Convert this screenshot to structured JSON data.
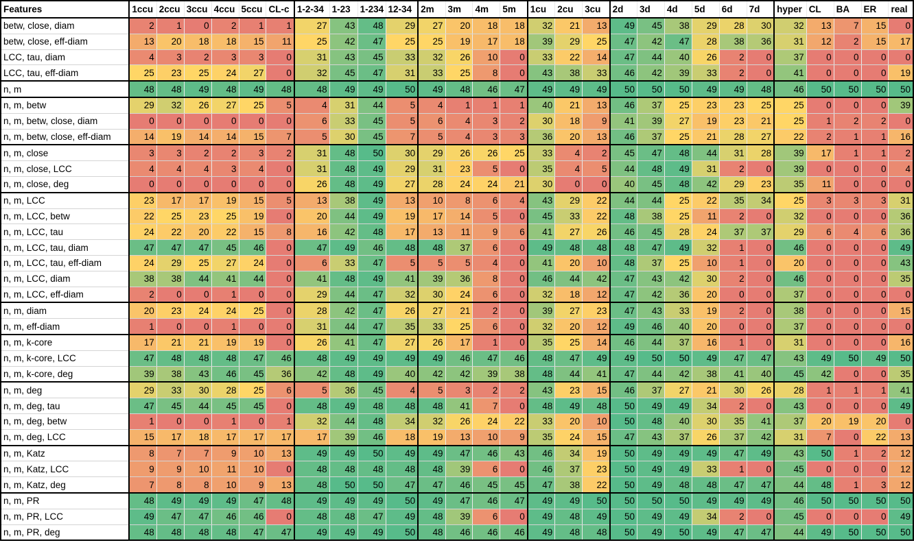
{
  "header": [
    "Features",
    "1ccu",
    "2ccu",
    "3ccu",
    "4ccu",
    "5ccu",
    "CL-c",
    "1-2-34",
    "1-23",
    "1-234",
    "12-34",
    "2m",
    "3m",
    "4m",
    "5m",
    "1cu",
    "2cu",
    "3cu",
    "2d",
    "3d",
    "4d",
    "5d",
    "6d",
    "7d",
    "hyper",
    "CL",
    "BA",
    "ER",
    "real"
  ],
  "rows": [
    {
      "feature": "betw, close, diam",
      "values": [
        2,
        1,
        0,
        2,
        1,
        1,
        27,
        43,
        48,
        29,
        27,
        20,
        18,
        18,
        32,
        21,
        13,
        49,
        45,
        38,
        29,
        28,
        30,
        32,
        13,
        7,
        15,
        0
      ]
    },
    {
      "feature": "betw, close, eff-diam",
      "values": [
        13,
        20,
        18,
        18,
        15,
        11,
        25,
        42,
        47,
        25,
        25,
        19,
        17,
        18,
        39,
        29,
        25,
        47,
        42,
        47,
        28,
        38,
        36,
        31,
        12,
        2,
        15,
        17
      ]
    },
    {
      "feature": "LCC, tau, diam",
      "values": [
        4,
        3,
        2,
        3,
        3,
        0,
        31,
        43,
        45,
        33,
        32,
        26,
        10,
        0,
        33,
        22,
        14,
        47,
        44,
        40,
        26,
        2,
        0,
        37,
        0,
        0,
        0,
        0
      ]
    },
    {
      "feature": "LCC, tau, eff-diam",
      "values": [
        25,
        23,
        25,
        24,
        27,
        0,
        32,
        45,
        47,
        31,
        33,
        25,
        8,
        0,
        43,
        38,
        33,
        46,
        42,
        39,
        33,
        2,
        0,
        41,
        0,
        0,
        0,
        19
      ]
    },
    {
      "feature": "n, m",
      "values": [
        48,
        48,
        49,
        48,
        49,
        48,
        48,
        49,
        49,
        50,
        49,
        48,
        46,
        47,
        49,
        49,
        49,
        50,
        50,
        50,
        49,
        49,
        48,
        46,
        50,
        50,
        50,
        50
      ]
    },
    {
      "feature": "n, m, betw",
      "values": [
        29,
        32,
        26,
        27,
        25,
        5,
        4,
        31,
        44,
        5,
        4,
        1,
        1,
        1,
        40,
        21,
        13,
        46,
        37,
        25,
        23,
        23,
        25,
        25,
        0,
        0,
        0,
        39
      ]
    },
    {
      "feature": "n, m, betw, close, diam",
      "values": [
        0,
        0,
        0,
        0,
        0,
        0,
        6,
        33,
        45,
        5,
        6,
        4,
        3,
        2,
        30,
        18,
        9,
        41,
        39,
        27,
        19,
        23,
        21,
        25,
        1,
        2,
        2,
        0
      ]
    },
    {
      "feature": "n, m, betw, close, eff-diam",
      "values": [
        14,
        19,
        14,
        14,
        15,
        7,
        5,
        30,
        45,
        7,
        5,
        4,
        3,
        3,
        36,
        20,
        13,
        46,
        37,
        25,
        21,
        28,
        27,
        22,
        2,
        1,
        1,
        16
      ]
    },
    {
      "feature": "n, m, close",
      "values": [
        3,
        3,
        2,
        2,
        3,
        2,
        31,
        48,
        50,
        30,
        29,
        26,
        26,
        25,
        33,
        4,
        2,
        45,
        47,
        48,
        44,
        31,
        28,
        39,
        17,
        1,
        1,
        2
      ]
    },
    {
      "feature": "n, m, close, LCC",
      "values": [
        4,
        4,
        4,
        3,
        4,
        0,
        31,
        48,
        49,
        29,
        31,
        23,
        5,
        0,
        35,
        4,
        5,
        44,
        48,
        49,
        31,
        2,
        0,
        39,
        0,
        0,
        0,
        4
      ]
    },
    {
      "feature": "n, m, close, deg",
      "values": [
        0,
        0,
        0,
        0,
        0,
        0,
        26,
        48,
        49,
        27,
        28,
        24,
        24,
        21,
        30,
        0,
        0,
        40,
        45,
        48,
        42,
        29,
        23,
        35,
        11,
        0,
        0,
        0
      ]
    },
    {
      "feature": "n, m, LCC",
      "values": [
        23,
        17,
        17,
        19,
        15,
        5,
        13,
        38,
        49,
        13,
        10,
        8,
        6,
        4,
        43,
        29,
        22,
        44,
        44,
        25,
        22,
        35,
        34,
        25,
        3,
        3,
        3,
        31
      ]
    },
    {
      "feature": "n, m, LCC, betw",
      "values": [
        22,
        25,
        23,
        25,
        19,
        0,
        20,
        44,
        49,
        19,
        17,
        14,
        5,
        0,
        45,
        33,
        22,
        48,
        38,
        25,
        11,
        2,
        0,
        32,
        0,
        0,
        0,
        36
      ]
    },
    {
      "feature": "n, m, LCC, tau",
      "values": [
        24,
        22,
        20,
        22,
        15,
        8,
        16,
        42,
        48,
        17,
        13,
        11,
        9,
        6,
        41,
        27,
        26,
        46,
        45,
        28,
        24,
        37,
        37,
        29,
        6,
        4,
        6,
        36
      ]
    },
    {
      "feature": "n, m, LCC, tau, diam",
      "values": [
        47,
        47,
        47,
        45,
        46,
        0,
        47,
        49,
        46,
        48,
        48,
        37,
        6,
        0,
        49,
        48,
        48,
        48,
        47,
        49,
        32,
        1,
        0,
        46,
        0,
        0,
        0,
        49
      ]
    },
    {
      "feature": "n, m, LCC, tau, eff-diam",
      "values": [
        24,
        29,
        25,
        27,
        24,
        0,
        6,
        33,
        47,
        5,
        5,
        5,
        4,
        0,
        41,
        20,
        10,
        48,
        37,
        25,
        10,
        1,
        0,
        20,
        0,
        0,
        0,
        43
      ]
    },
    {
      "feature": "n, m, LCC, diam",
      "values": [
        38,
        38,
        44,
        41,
        44,
        0,
        41,
        48,
        49,
        41,
        39,
        36,
        8,
        0,
        46,
        44,
        42,
        47,
        43,
        42,
        30,
        2,
        0,
        46,
        0,
        0,
        0,
        35
      ]
    },
    {
      "feature": "n, m, LCC, eff-diam",
      "values": [
        2,
        0,
        0,
        1,
        0,
        0,
        29,
        44,
        47,
        32,
        30,
        24,
        6,
        0,
        32,
        18,
        12,
        47,
        42,
        36,
        20,
        0,
        0,
        37,
        0,
        0,
        0,
        0
      ]
    },
    {
      "feature": "n, m, diam",
      "values": [
        20,
        23,
        24,
        24,
        25,
        0,
        28,
        42,
        47,
        26,
        27,
        21,
        2,
        0,
        39,
        27,
        23,
        47,
        43,
        33,
        19,
        2,
        0,
        38,
        0,
        0,
        0,
        15
      ]
    },
    {
      "feature": "n, m, eff-diam",
      "values": [
        1,
        0,
        0,
        1,
        0,
        0,
        31,
        44,
        47,
        35,
        33,
        25,
        6,
        0,
        32,
        20,
        12,
        49,
        46,
        40,
        20,
        0,
        0,
        37,
        0,
        0,
        0,
        0
      ]
    },
    {
      "feature": "n, m, k-core",
      "values": [
        17,
        21,
        21,
        19,
        19,
        0,
        26,
        41,
        47,
        27,
        26,
        17,
        1,
        0,
        35,
        25,
        14,
        46,
        44,
        37,
        16,
        1,
        0,
        31,
        0,
        0,
        0,
        16
      ]
    },
    {
      "feature": "n, m, k-core, LCC",
      "values": [
        47,
        48,
        48,
        48,
        47,
        46,
        48,
        49,
        49,
        49,
        49,
        46,
        47,
        46,
        48,
        47,
        49,
        49,
        50,
        50,
        49,
        47,
        47,
        43,
        49,
        50,
        49,
        50
      ]
    },
    {
      "feature": "n, m, k-core, deg",
      "values": [
        39,
        38,
        43,
        46,
        45,
        36,
        42,
        48,
        49,
        40,
        42,
        42,
        39,
        38,
        48,
        44,
        41,
        47,
        44,
        42,
        38,
        41,
        40,
        45,
        42,
        0,
        0,
        35
      ]
    },
    {
      "feature": "n, m, deg",
      "values": [
        29,
        33,
        30,
        28,
        25,
        6,
        5,
        36,
        45,
        4,
        5,
        3,
        2,
        2,
        43,
        23,
        15,
        46,
        37,
        27,
        21,
        30,
        26,
        28,
        1,
        1,
        1,
        41
      ]
    },
    {
      "feature": "n, m, deg, tau",
      "values": [
        47,
        45,
        44,
        45,
        45,
        0,
        48,
        49,
        48,
        48,
        48,
        41,
        7,
        0,
        48,
        49,
        48,
        50,
        49,
        49,
        34,
        2,
        0,
        43,
        0,
        0,
        0,
        49
      ]
    },
    {
      "feature": "n, m, deg, betw",
      "values": [
        1,
        0,
        0,
        1,
        0,
        1,
        32,
        44,
        48,
        34,
        32,
        26,
        24,
        22,
        33,
        20,
        10,
        50,
        48,
        40,
        30,
        35,
        41,
        37,
        20,
        19,
        20,
        0
      ]
    },
    {
      "feature": "n, m, deg, LCC",
      "values": [
        15,
        17,
        18,
        17,
        17,
        17,
        17,
        39,
        46,
        18,
        19,
        13,
        10,
        9,
        35,
        24,
        15,
        47,
        43,
        37,
        26,
        37,
        42,
        31,
        7,
        0,
        22,
        13
      ]
    },
    {
      "feature": "n, m, Katz",
      "values": [
        8,
        7,
        7,
        9,
        10,
        13,
        49,
        49,
        50,
        49,
        49,
        47,
        46,
        43,
        46,
        34,
        19,
        50,
        49,
        49,
        49,
        47,
        49,
        43,
        50,
        1,
        2,
        12
      ]
    },
    {
      "feature": "n, m, Katz, LCC",
      "values": [
        9,
        9,
        10,
        11,
        10,
        0,
        48,
        48,
        48,
        48,
        48,
        39,
        6,
        0,
        46,
        37,
        23,
        50,
        49,
        49,
        33,
        1,
        0,
        45,
        0,
        0,
        0,
        12
      ]
    },
    {
      "feature": "n, m, Katz, deg",
      "values": [
        7,
        8,
        8,
        10,
        9,
        13,
        48,
        50,
        50,
        47,
        47,
        46,
        45,
        45,
        47,
        38,
        22,
        50,
        49,
        48,
        48,
        47,
        47,
        44,
        48,
        1,
        3,
        12
      ]
    },
    {
      "feature": "n, m, PR",
      "values": [
        48,
        49,
        49,
        49,
        47,
        48,
        49,
        49,
        49,
        50,
        49,
        47,
        46,
        47,
        49,
        49,
        50,
        50,
        50,
        50,
        49,
        49,
        49,
        46,
        50,
        50,
        50,
        50
      ]
    },
    {
      "feature": "n, m, PR, LCC",
      "values": [
        49,
        47,
        47,
        46,
        46,
        0,
        48,
        48,
        47,
        49,
        48,
        39,
        6,
        0,
        49,
        48,
        49,
        50,
        49,
        49,
        34,
        2,
        0,
        45,
        0,
        0,
        0,
        49
      ]
    },
    {
      "feature": "n, m, PR, deg",
      "values": [
        48,
        48,
        48,
        48,
        47,
        47,
        49,
        49,
        49,
        50,
        48,
        46,
        46,
        46,
        49,
        48,
        48,
        50,
        49,
        50,
        49,
        47,
        47,
        44,
        49,
        50,
        50,
        50
      ]
    }
  ]
}
